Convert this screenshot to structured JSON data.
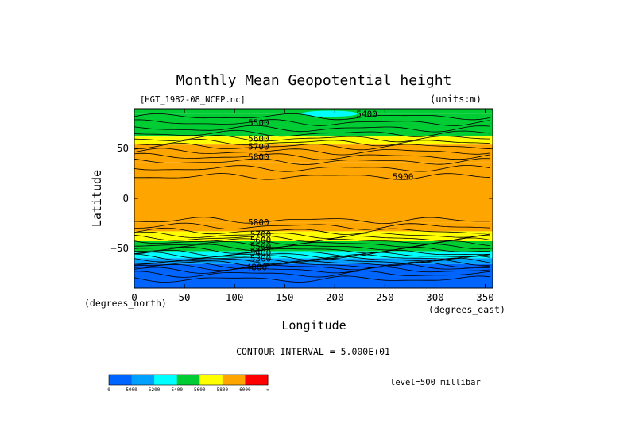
{
  "chart_data": {
    "type": "heatmap",
    "title": "Monthly Mean Geopotential height",
    "dataset_label": "[HGT_1982-08_NCEP.nc]",
    "units_label": "(units:m)",
    "xlabel": "Longitude",
    "ylabel": "Latitude",
    "x_unit_label": "(degrees_east)",
    "y_unit_label": "(degrees_north)",
    "xlim": [
      0,
      357.5
    ],
    "ylim": [
      -90,
      90
    ],
    "x_ticks": [
      0,
      50,
      100,
      150,
      200,
      250,
      300,
      350
    ],
    "y_ticks": [
      50,
      0,
      -50
    ],
    "y_tick_labels": [
      "50",
      "0",
      "−50"
    ],
    "contour_interval_text": "CONTOUR INTERVAL = 5.000E+01",
    "level_text": "level=500 millibar",
    "contour_labels": [
      {
        "text": "5400",
        "lon": 232,
        "lat": 85
      },
      {
        "text": "5500",
        "lon": 124,
        "lat": 76
      },
      {
        "text": "5600",
        "lon": 124,
        "lat": 60
      },
      {
        "text": "5700",
        "lon": 124,
        "lat": 52
      },
      {
        "text": "5800",
        "lon": 124,
        "lat": 42
      },
      {
        "text": "5900",
        "lon": 268,
        "lat": 22
      },
      {
        "text": "5800",
        "lon": 124,
        "lat": -24
      },
      {
        "text": "5700",
        "lon": 126,
        "lat": -36
      },
      {
        "text": "5600",
        "lon": 126,
        "lat": -42
      },
      {
        "text": "5500",
        "lon": 126,
        "lat": -48
      },
      {
        "text": "5400",
        "lon": 126,
        "lat": -54
      },
      {
        "text": "5300",
        "lon": 126,
        "lat": -60
      },
      {
        "text": "4800",
        "lon": 122,
        "lat": -69
      }
    ],
    "bands": [
      {
        "lat_top": 90,
        "lat_bottom": 85,
        "color": "#00cc33"
      },
      {
        "lat_top": 85,
        "lat_bottom": 62,
        "color": "#00cc33"
      },
      {
        "lat_top": 62,
        "lat_bottom": 54,
        "color": "#ffff00"
      },
      {
        "lat_top": 54,
        "lat_bottom": 36,
        "color": "#ffa500"
      },
      {
        "lat_top": 36,
        "lat_bottom": -24,
        "color": "#ffa500"
      },
      {
        "lat_top": -24,
        "lat_bottom": -33,
        "color": "#ffa500"
      },
      {
        "lat_top": -33,
        "lat_bottom": -43,
        "color": "#ffff00"
      },
      {
        "lat_top": -43,
        "lat_bottom": -53,
        "color": "#00cc33"
      },
      {
        "lat_top": -53,
        "lat_bottom": -60,
        "color": "#00ffff"
      },
      {
        "lat_top": -60,
        "lat_bottom": -66,
        "color": "#00a0ff"
      },
      {
        "lat_top": -66,
        "lat_bottom": -90,
        "color": "#0064ff"
      }
    ],
    "blobs": [
      {
        "lon": 195,
        "lat": 85,
        "lon_r": 28,
        "lat_r": 3,
        "color": "#00ffff"
      },
      {
        "lon": 50,
        "lat": 70,
        "lon_r": 40,
        "lat_r": 6,
        "color": "#00cc33"
      },
      {
        "lon": 270,
        "lat": 20,
        "lon_r": 22,
        "lat_r": 8,
        "color": "#ffa500"
      }
    ],
    "contour_lats": [
      82,
      76,
      70,
      65,
      60,
      56,
      52,
      47,
      42,
      37,
      30,
      22,
      -22,
      -28,
      -33,
      -37,
      -40,
      -43,
      -46,
      -49,
      -52,
      -55,
      -57,
      -59,
      -61,
      -63,
      -65,
      -67,
      -69,
      -72,
      -76,
      -81
    ],
    "colorbar": {
      "colors": [
        "#0064ff",
        "#00a0ff",
        "#00ffff",
        "#00cc33",
        "#ffff00",
        "#ffa500",
        "#ff0000"
      ],
      "labels": [
        "0",
        "5000",
        "5200",
        "5400",
        "5600",
        "5800",
        "6000",
        "∞"
      ]
    }
  }
}
